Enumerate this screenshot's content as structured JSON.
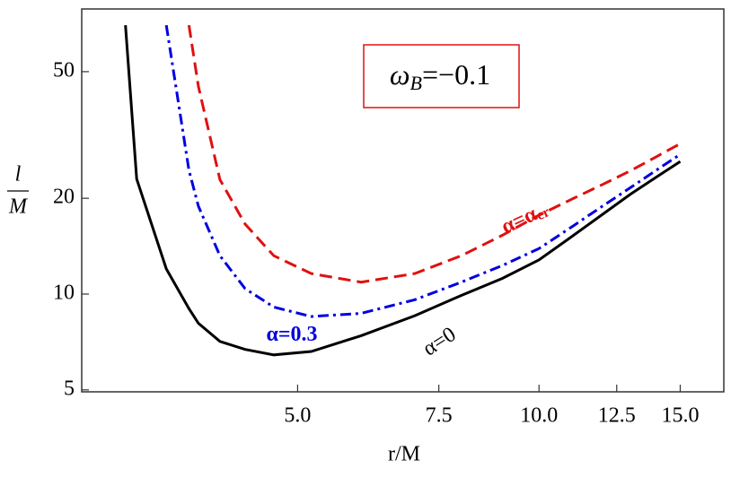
{
  "chart_data": {
    "type": "line",
    "x_label": "r/M",
    "y_label_top": "l",
    "y_label_bottom": "M",
    "box_label": {
      "main": "ω",
      "sub": "B",
      "rest": "=−0.1"
    },
    "x": [
      3.05,
      3.15,
      3.43,
      3.66,
      3.76,
      4.0,
      4.3,
      4.67,
      5.2,
      6,
      7,
      8,
      9,
      10,
      11,
      12,
      13,
      14,
      15
    ],
    "series": [
      {
        "name": "α=0",
        "color": "#000000",
        "dash": "solid",
        "values": [
          70,
          23,
          12,
          9.0,
          8.1,
          7.1,
          6.7,
          6.44,
          6.6,
          7.4,
          8.55,
          9.9,
          11.2,
          12.8,
          15.2,
          17.8,
          20.6,
          23.3,
          26.1
        ]
      },
      {
        "name": "α=0.3",
        "color": "#0000e0",
        "dash": "dashdot",
        "values": [
          null,
          null,
          70,
          24.5,
          18.9,
          13.2,
          10.4,
          9.1,
          8.5,
          8.7,
          9.6,
          10.9,
          12.3,
          13.9,
          16.3,
          18.9,
          21.6,
          24.5,
          27.5
        ]
      },
      {
        "name": "α=α",
        "name_sub": "cr",
        "color": "#e01010",
        "dash": "dashed",
        "values": [
          null,
          null,
          null,
          70,
          45,
          22.9,
          16.6,
          13.2,
          11.6,
          10.9,
          11.6,
          13.2,
          15.3,
          17.7,
          19.9,
          22.1,
          24.4,
          27.0,
          29.7
        ]
      }
    ],
    "log_x": true,
    "log_y": true,
    "xlim": [
      2.69,
      17
    ],
    "ylim": [
      4.93,
      78.7
    ],
    "xticks": [
      {
        "value": 5,
        "label": "5.0"
      },
      {
        "value": 7.5,
        "label": "7.5"
      },
      {
        "value": 10,
        "label": "10.0"
      },
      {
        "value": 12.5,
        "label": "12.5"
      },
      {
        "value": 15,
        "label": "15.0"
      }
    ],
    "yticks": [
      5,
      10,
      20,
      50
    ]
  }
}
